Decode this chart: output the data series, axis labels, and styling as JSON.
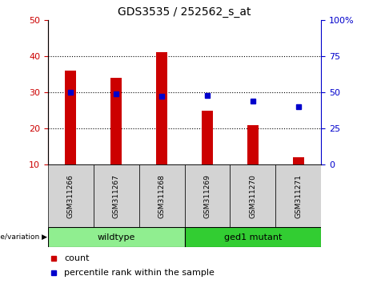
{
  "title": "GDS3535 / 252562_s_at",
  "samples": [
    "GSM311266",
    "GSM311267",
    "GSM311268",
    "GSM311269",
    "GSM311270",
    "GSM311271"
  ],
  "counts": [
    36,
    34,
    41,
    25,
    21,
    12
  ],
  "percentile_ranks_pct": [
    50,
    49,
    47,
    48,
    44,
    40
  ],
  "groups": [
    "wildtype",
    "wildtype",
    "wildtype",
    "ged1 mutant",
    "ged1 mutant",
    "ged1 mutant"
  ],
  "group_labels": [
    "wildtype",
    "ged1 mutant"
  ],
  "wildtype_color": "#90EE90",
  "ged1_color": "#32CD32",
  "bar_color": "#CC0000",
  "dot_color": "#0000CC",
  "ylim_left": [
    10,
    50
  ],
  "ylim_right": [
    0,
    100
  ],
  "yticks_left": [
    10,
    20,
    30,
    40,
    50
  ],
  "yticks_right": [
    0,
    25,
    50,
    75,
    100
  ],
  "ytick_labels_right": [
    "0",
    "25",
    "50",
    "75",
    "100%"
  ],
  "left_tick_color": "#CC0000",
  "right_tick_color": "#0000CC",
  "bg_color": "#FFFFFF",
  "bar_width": 0.25,
  "legend_count_label": "count",
  "legend_pct_label": "percentile rank within the sample",
  "gray_box_color": "#D3D3D3",
  "genotype_label": "genotype/variation"
}
